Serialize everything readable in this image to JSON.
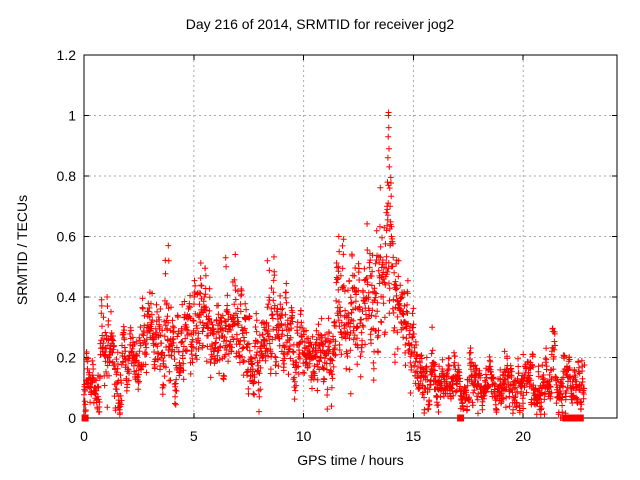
{
  "window": {
    "background": "#ffffff"
  },
  "chart_data": {
    "type": "scatter",
    "title": "Day 216 of 2014, SRMTID for receiver jog2",
    "xlabel": "GPS time / hours",
    "ylabel": "SRMTID / TECUs",
    "xlim": [
      0,
      24.27
    ],
    "ylim": [
      0,
      1.2
    ],
    "xticks": [
      0,
      5,
      10,
      15,
      20
    ],
    "xtick_labels": [
      "0",
      "5",
      "10",
      "15",
      "20"
    ],
    "yticks": [
      0,
      0.2,
      0.4,
      0.6,
      0.8,
      1,
      1.2
    ],
    "ytick_labels": [
      "0",
      "0.2",
      "0.4",
      "0.6",
      "0.8",
      "1",
      "1.2"
    ],
    "grid": {
      "shown": true,
      "style": "dotted",
      "color": "#aaaaaa"
    },
    "legend": "none",
    "marker": "plus",
    "marker_size_px": 7,
    "marker_color": "#ff0000",
    "border_color": "#000000",
    "description": "Dense time series of SRMTID values (one point every ~30 s) for GPS receiver jog2 on day 216 of 2014; band oscillates around 0.1-0.35 TECUs, rises through hours 12-14 to a sharp maximum of ~1.01 at hour ~13.9, then drops to a quiet ~0.1 band after hour 15 until data ends near hour 22.8. Scattered zero-valued samples are drawn as filled squares on the axis.",
    "peak": {
      "hour": 13.87,
      "value": 1.01
    },
    "envelope_hour_mean_sd": [
      [
        0.0,
        0.11,
        0.04
      ],
      [
        0.5,
        0.13,
        0.05
      ],
      [
        1.0,
        0.22,
        0.09
      ],
      [
        1.3,
        0.16,
        0.06
      ],
      [
        1.7,
        0.15,
        0.07
      ],
      [
        2.1,
        0.21,
        0.06
      ],
      [
        2.6,
        0.22,
        0.07
      ],
      [
        3.0,
        0.26,
        0.07
      ],
      [
        3.4,
        0.22,
        0.09
      ],
      [
        3.85,
        0.3,
        0.12
      ],
      [
        4.2,
        0.17,
        0.07
      ],
      [
        4.6,
        0.26,
        0.08
      ],
      [
        5.0,
        0.29,
        0.08
      ],
      [
        5.5,
        0.31,
        0.09
      ],
      [
        5.9,
        0.25,
        0.08
      ],
      [
        6.3,
        0.31,
        0.09
      ],
      [
        6.6,
        0.33,
        0.1
      ],
      [
        7.0,
        0.29,
        0.08
      ],
      [
        7.4,
        0.24,
        0.08
      ],
      [
        7.8,
        0.2,
        0.08
      ],
      [
        8.2,
        0.28,
        0.09
      ],
      [
        8.5,
        0.31,
        0.1
      ],
      [
        8.9,
        0.28,
        0.08
      ],
      [
        9.3,
        0.26,
        0.07
      ],
      [
        9.7,
        0.22,
        0.07
      ],
      [
        10.1,
        0.2,
        0.06
      ],
      [
        10.5,
        0.21,
        0.07
      ],
      [
        10.9,
        0.2,
        0.07
      ],
      [
        11.3,
        0.24,
        0.08
      ],
      [
        11.65,
        0.31,
        0.12
      ],
      [
        12.0,
        0.28,
        0.09
      ],
      [
        12.4,
        0.33,
        0.1
      ],
      [
        12.8,
        0.36,
        0.11
      ],
      [
        13.2,
        0.41,
        0.13
      ],
      [
        13.6,
        0.46,
        0.14
      ],
      [
        13.85,
        0.55,
        0.17
      ],
      [
        14.1,
        0.41,
        0.13
      ],
      [
        14.5,
        0.3,
        0.1
      ],
      [
        14.9,
        0.21,
        0.07
      ],
      [
        15.3,
        0.15,
        0.05
      ],
      [
        15.7,
        0.13,
        0.05
      ],
      [
        16.1,
        0.12,
        0.05
      ],
      [
        16.6,
        0.11,
        0.04
      ],
      [
        17.1,
        0.1,
        0.04
      ],
      [
        17.6,
        0.11,
        0.05
      ],
      [
        18.1,
        0.1,
        0.04
      ],
      [
        18.6,
        0.12,
        0.05
      ],
      [
        19.1,
        0.11,
        0.05
      ],
      [
        19.6,
        0.1,
        0.04
      ],
      [
        20.0,
        0.12,
        0.05
      ],
      [
        20.5,
        0.09,
        0.04
      ],
      [
        21.0,
        0.1,
        0.05
      ],
      [
        21.35,
        0.13,
        0.06
      ],
      [
        21.7,
        0.1,
        0.05
      ],
      [
        22.2,
        0.1,
        0.05
      ],
      [
        22.8,
        0.11,
        0.05
      ]
    ],
    "highlight_points": [
      [
        1.05,
        0.4
      ],
      [
        1.07,
        0.37
      ],
      [
        1.55,
        0.035
      ],
      [
        1.63,
        0.05
      ],
      [
        3.84,
        0.57
      ],
      [
        3.86,
        0.52
      ],
      [
        4.15,
        0.07
      ],
      [
        5.55,
        0.47
      ],
      [
        6.45,
        0.53
      ],
      [
        6.47,
        0.5
      ],
      [
        8.35,
        0.52
      ],
      [
        11.58,
        0.5
      ],
      [
        11.6,
        0.6
      ],
      [
        11.62,
        0.55
      ],
      [
        12.15,
        0.08
      ],
      [
        13.78,
        0.62
      ],
      [
        13.8,
        0.7
      ],
      [
        13.82,
        0.78
      ],
      [
        13.84,
        0.86
      ],
      [
        13.85,
        0.93
      ],
      [
        13.86,
        1.0
      ],
      [
        13.87,
        1.01
      ],
      [
        13.88,
        0.96
      ],
      [
        13.89,
        0.89
      ],
      [
        13.9,
        0.83
      ],
      [
        13.92,
        0.76
      ],
      [
        13.94,
        0.7
      ],
      [
        13.96,
        0.64
      ],
      [
        14.0,
        0.6
      ],
      [
        15.85,
        0.3
      ],
      [
        19.15,
        0.22
      ],
      [
        20.0,
        0.21
      ],
      [
        21.3,
        0.21
      ]
    ],
    "zero_square_hours": [
      0.05,
      17.15,
      21.95,
      22.08,
      22.22,
      22.45,
      22.6
    ],
    "zero_plus_hours": [
      21.7,
      21.76,
      21.82,
      22.33
    ],
    "sampling": {
      "t_min": 0,
      "t_max": 22.8,
      "step": 0.01,
      "seed": 20140216,
      "n_points_approx": 2280
    }
  }
}
